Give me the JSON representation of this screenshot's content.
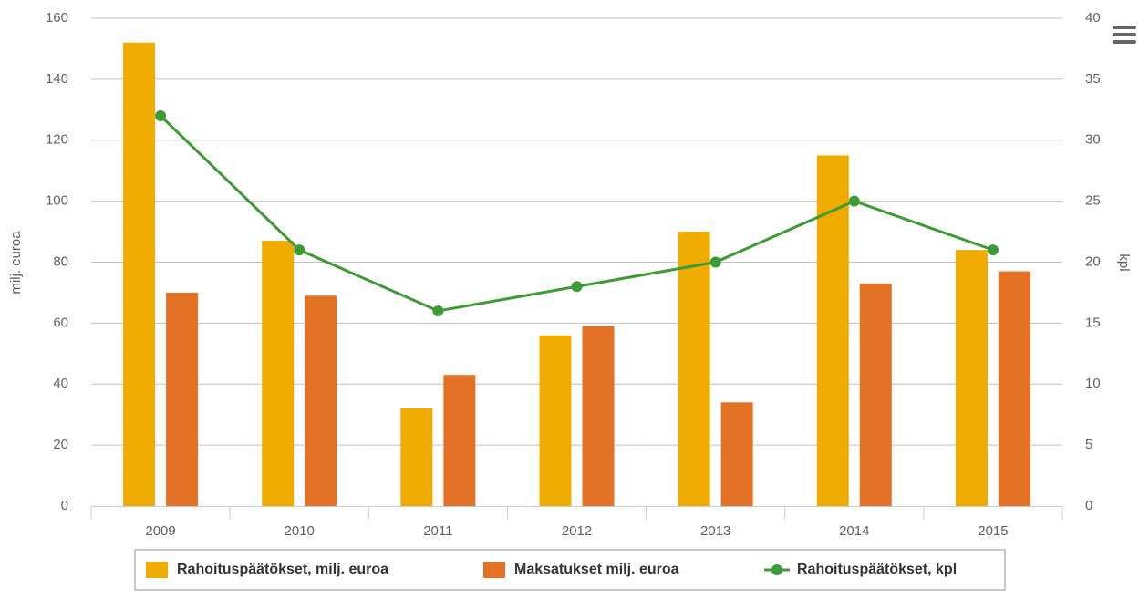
{
  "chart_data": {
    "type": "bar",
    "categories": [
      "2009",
      "2010",
      "2011",
      "2012",
      "2013",
      "2014",
      "2015"
    ],
    "series": [
      {
        "name": "Rahoituspäätökset, milj. euroa",
        "color": "#f0ab00",
        "type": "bar",
        "values": [
          152,
          87,
          32,
          56,
          90,
          115,
          84
        ]
      },
      {
        "name": "Maksatukset milj. euroa",
        "color": "#e37227",
        "type": "bar",
        "values": [
          70,
          69,
          43,
          59,
          34,
          73,
          77
        ]
      },
      {
        "name": "Rahoituspäätökset, kpl",
        "color": "#3d9a37",
        "type": "line",
        "axis": "y2",
        "values": [
          32,
          21,
          16,
          18,
          20,
          25,
          21
        ]
      }
    ],
    "ylabel": "milj. euroa",
    "y2label": "kpl",
    "ylim": [
      0,
      160
    ],
    "yticks": [
      0,
      20,
      40,
      60,
      80,
      100,
      120,
      140,
      160
    ],
    "y2lim": [
      0,
      40
    ],
    "y2ticks": [
      0,
      5,
      10,
      15,
      20,
      25,
      30,
      35,
      40
    ],
    "grid": true,
    "legend": "bottom"
  }
}
